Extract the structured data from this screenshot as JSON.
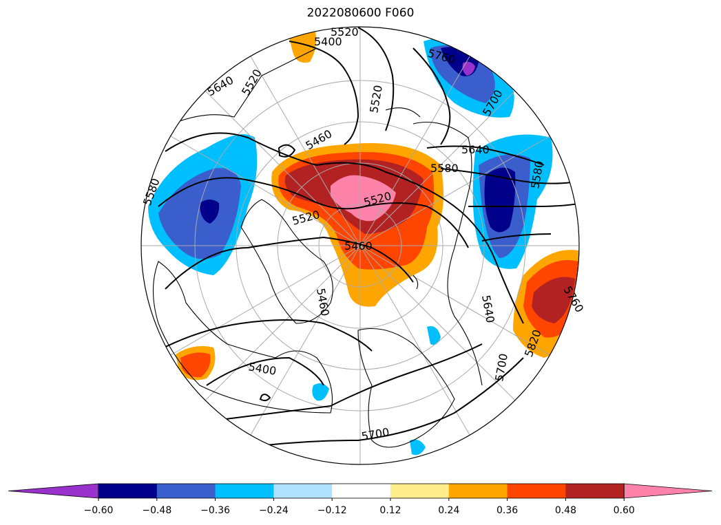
{
  "title": "2022080600 F060",
  "colorbar": {
    "extend": "both",
    "colors": [
      "#9932cc",
      "#00008b",
      "#3a5fcd",
      "#00bfff",
      "#b0e2ff",
      "#ffffff",
      "#ffec8b",
      "#ffa500",
      "#ff4500",
      "#b22222",
      "#ff82ab"
    ],
    "ticks": [
      "−0.60",
      "−0.48",
      "−0.36",
      "−0.24",
      "−0.12",
      "0.12",
      "0.24",
      "0.36",
      "0.48",
      "0.60"
    ]
  },
  "contour_labels": [
    "5520",
    "5400",
    "5640",
    "5520",
    "5760",
    "5700",
    "5520",
    "5460",
    "5640",
    "5580",
    "5580",
    "5580",
    "5520",
    "5520",
    "5460",
    "5460",
    "5640",
    "5820",
    "5760",
    "5400",
    "5700",
    "5700"
  ],
  "map": {
    "projection": "north-polar-stereographic",
    "field": "500 hPa geopotential height (contours) with anomaly shading"
  }
}
